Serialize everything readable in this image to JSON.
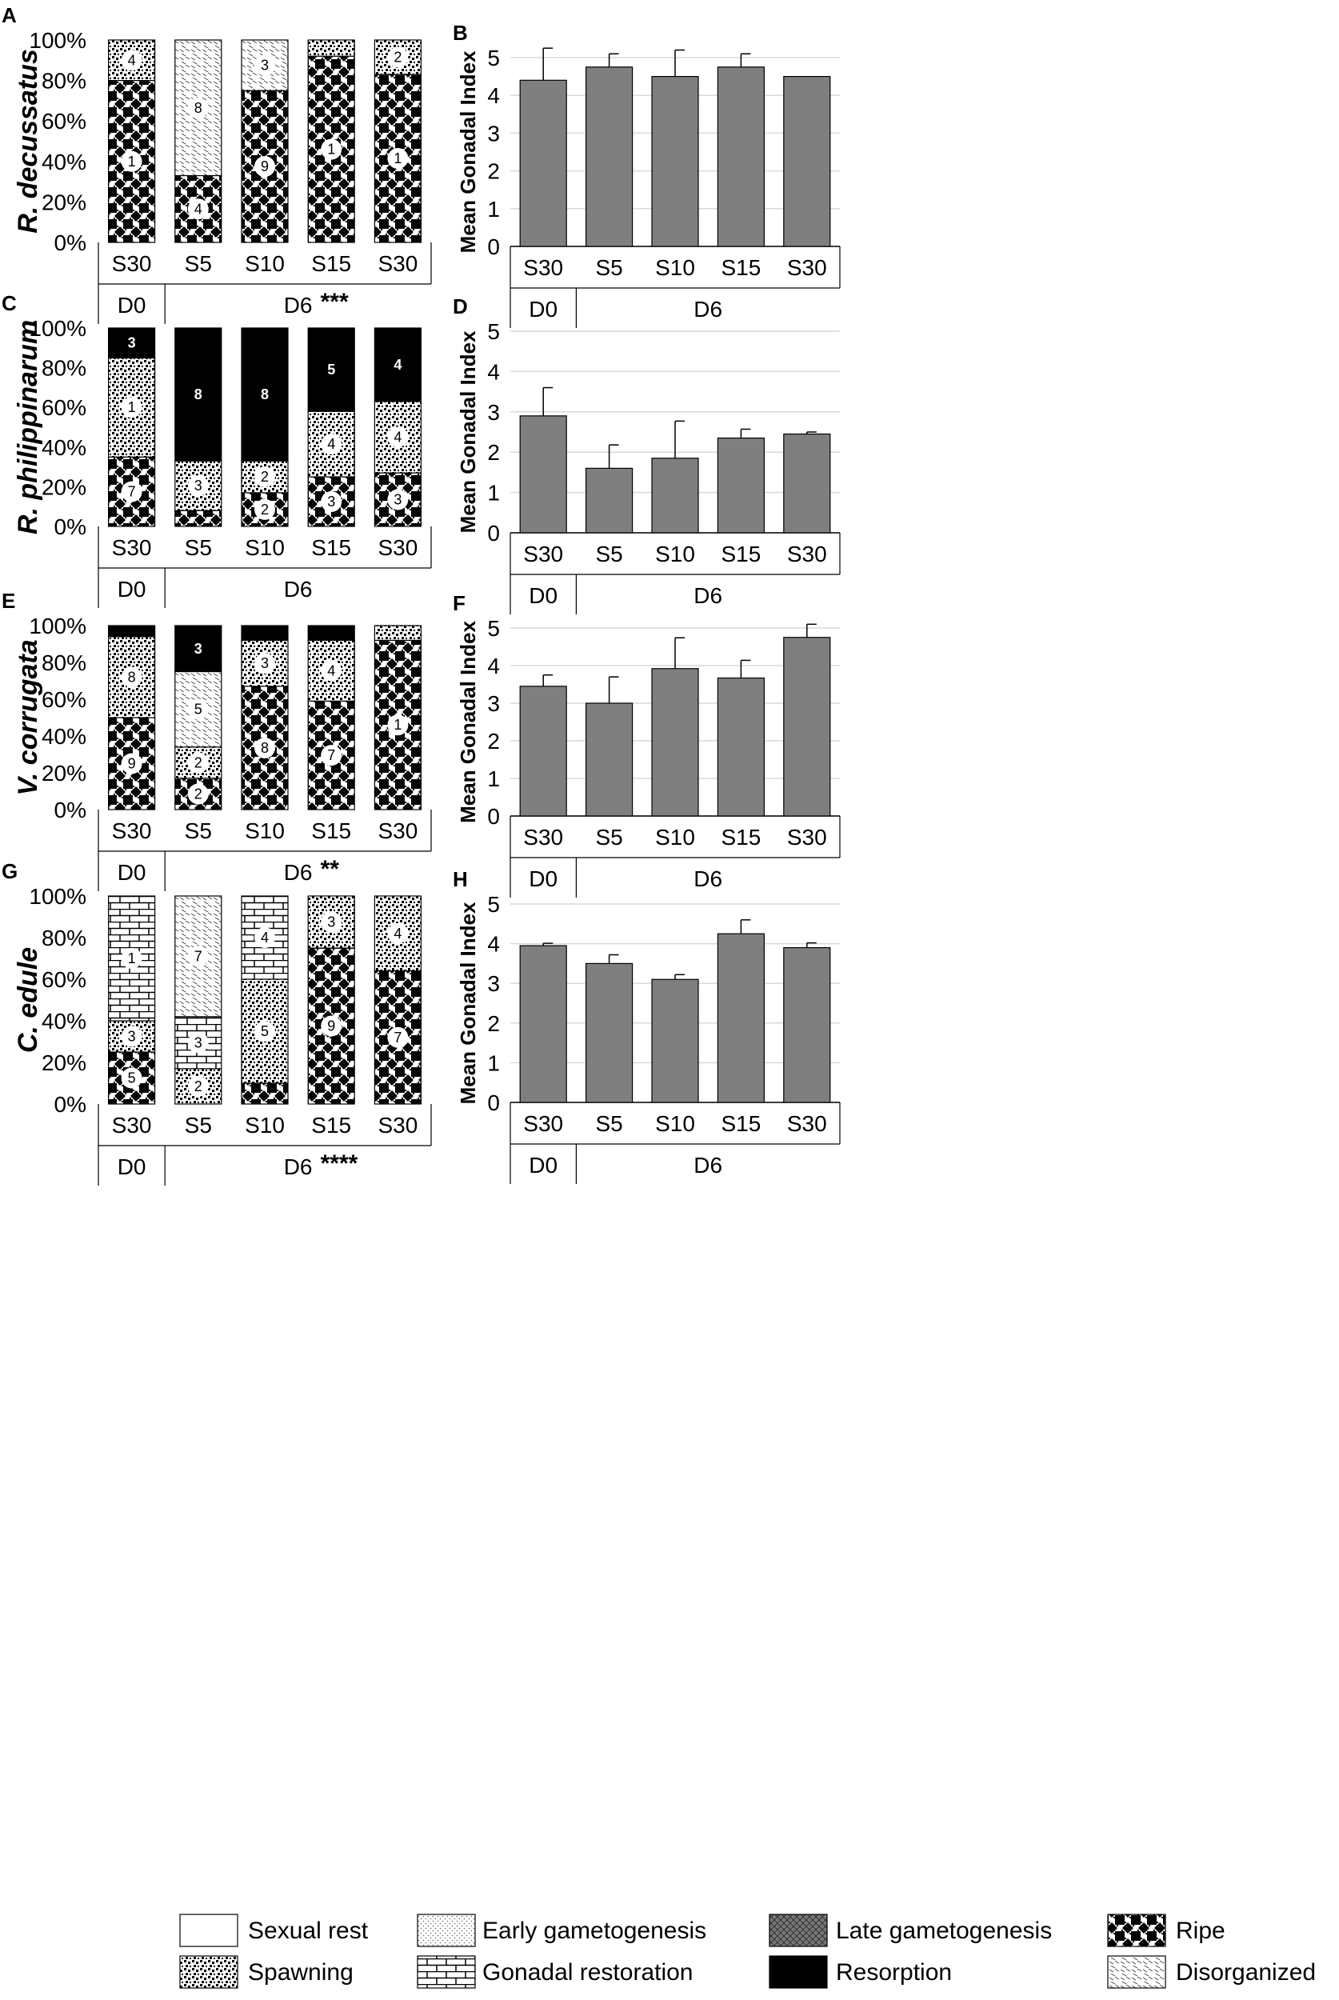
{
  "figure": {
    "x_groups": {
      "top": "S30,S5,S10,S15,S30",
      "d0_label": "D0",
      "d6_label": "D6"
    }
  },
  "legend": [
    {
      "key": "rest",
      "label": "Sexual rest"
    },
    {
      "key": "early",
      "label": "Early gametogenesis"
    },
    {
      "key": "late",
      "label": "Late gametogenesis"
    },
    {
      "key": "ripe",
      "label": "Ripe"
    },
    {
      "key": "spawn",
      "label": "Spawning"
    },
    {
      "key": "resto",
      "label": "Gonadal restoration"
    },
    {
      "key": "resorp",
      "label": "Resorption"
    },
    {
      "key": "disorg",
      "label": "Disorganized"
    }
  ],
  "chart_data": [
    {
      "panel": "A",
      "type": "bar",
      "stacked": true,
      "species": "R. decussatus",
      "categories": [
        "S30",
        "S5",
        "S10",
        "S15",
        "S30"
      ],
      "groups": [
        "D0",
        "D6",
        "D6",
        "D6",
        "D6"
      ],
      "significance": "***",
      "y_ticks": [
        "0%",
        "20%",
        "40%",
        "60%",
        "80%",
        "100%"
      ],
      "stacks": [
        [
          {
            "stage": "ripe",
            "pct": 80,
            "n": "1"
          },
          {
            "stage": "spawn",
            "pct": 20,
            "n": "4"
          }
        ],
        [
          {
            "stage": "ripe",
            "pct": 33,
            "n": "4"
          },
          {
            "stage": "disorg",
            "pct": 67,
            "n": "8"
          }
        ],
        [
          {
            "stage": "ripe",
            "pct": 75,
            "n": "9"
          },
          {
            "stage": "disorg",
            "pct": 25,
            "n": "3"
          }
        ],
        [
          {
            "stage": "ripe",
            "pct": 92,
            "n": "1"
          },
          {
            "stage": "spawn",
            "pct": 8,
            "n": ""
          }
        ],
        [
          {
            "stage": "ripe",
            "pct": 83,
            "n": "1"
          },
          {
            "stage": "spawn",
            "pct": 17,
            "n": "2"
          }
        ]
      ]
    },
    {
      "panel": "B",
      "type": "bar",
      "ylabel": "Mean Gonadal  Index",
      "ylim": [
        0,
        5
      ],
      "categories": [
        "S30",
        "S5",
        "S10",
        "S15",
        "S30"
      ],
      "groups": [
        "D0",
        "D6",
        "D6",
        "D6",
        "D6"
      ],
      "values": [
        4.4,
        4.75,
        4.5,
        4.75,
        4.5
      ],
      "errors": [
        0.85,
        0.35,
        0.7,
        0.35,
        0
      ]
    },
    {
      "panel": "C",
      "type": "bar",
      "stacked": true,
      "species": "R. philippinarum",
      "categories": [
        "S30",
        "S5",
        "S10",
        "S15",
        "S30"
      ],
      "groups": [
        "D0",
        "D6",
        "D6",
        "D6",
        "D6"
      ],
      "significance": "",
      "y_ticks": [
        "0%",
        "20%",
        "40%",
        "60%",
        "80%",
        "100%"
      ],
      "stacks": [
        [
          {
            "stage": "ripe",
            "pct": 35,
            "n": "7"
          },
          {
            "stage": "spawn",
            "pct": 50,
            "n": "1"
          },
          {
            "stage": "resorp",
            "pct": 15,
            "n": "3"
          }
        ],
        [
          {
            "stage": "ripe",
            "pct": 8,
            "n": ""
          },
          {
            "stage": "spawn",
            "pct": 25,
            "n": "3"
          },
          {
            "stage": "resorp",
            "pct": 67,
            "n": "8"
          }
        ],
        [
          {
            "stage": "ripe",
            "pct": 17,
            "n": "2"
          },
          {
            "stage": "spawn",
            "pct": 16,
            "n": "2"
          },
          {
            "stage": "resorp",
            "pct": 67,
            "n": "8"
          }
        ],
        [
          {
            "stage": "ripe",
            "pct": 25,
            "n": "3"
          },
          {
            "stage": "spawn",
            "pct": 33,
            "n": "4"
          },
          {
            "stage": "resorp",
            "pct": 42,
            "n": "5"
          }
        ],
        [
          {
            "stage": "ripe",
            "pct": 27,
            "n": "3"
          },
          {
            "stage": "spawn",
            "pct": 36,
            "n": "4"
          },
          {
            "stage": "resorp",
            "pct": 37,
            "n": "4"
          }
        ]
      ]
    },
    {
      "panel": "D",
      "type": "bar",
      "ylabel": "Mean Gonadal  Index",
      "ylim": [
        0,
        5
      ],
      "categories": [
        "S30",
        "S5",
        "S10",
        "S15",
        "S30"
      ],
      "groups": [
        "D0",
        "D6",
        "D6",
        "D6",
        "D6"
      ],
      "values": [
        2.9,
        1.6,
        1.85,
        2.35,
        2.45
      ],
      "errors": [
        0.7,
        0.58,
        0.92,
        0.22,
        0.05
      ]
    },
    {
      "panel": "E",
      "type": "bar",
      "stacked": true,
      "species": "V. corrugata",
      "categories": [
        "S30",
        "S5",
        "S10",
        "S15",
        "S30"
      ],
      "groups": [
        "D0",
        "D6",
        "D6",
        "D6",
        "D6"
      ],
      "significance": "**",
      "y_ticks": [
        "0%",
        "20%",
        "40%",
        "60%",
        "80%",
        "100%"
      ],
      "stacks": [
        [
          {
            "stage": "ripe",
            "pct": 50,
            "n": "9"
          },
          {
            "stage": "spawn",
            "pct": 44,
            "n": "8"
          },
          {
            "stage": "resorp",
            "pct": 6,
            "n": ""
          }
        ],
        [
          {
            "stage": "ripe",
            "pct": 17,
            "n": "2"
          },
          {
            "stage": "spawn",
            "pct": 17,
            "n": "2"
          },
          {
            "stage": "disorg",
            "pct": 41,
            "n": "5"
          },
          {
            "stage": "resorp",
            "pct": 25,
            "n": "3"
          }
        ],
        [
          {
            "stage": "ripe",
            "pct": 67,
            "n": "8"
          },
          {
            "stage": "spawn",
            "pct": 25,
            "n": "3"
          },
          {
            "stage": "resorp",
            "pct": 8,
            "n": ""
          }
        ],
        [
          {
            "stage": "ripe",
            "pct": 59,
            "n": "7"
          },
          {
            "stage": "spawn",
            "pct": 33,
            "n": "4"
          },
          {
            "stage": "resorp",
            "pct": 8,
            "n": ""
          }
        ],
        [
          {
            "stage": "ripe",
            "pct": 92,
            "n": "1"
          },
          {
            "stage": "spawn",
            "pct": 8,
            "n": ""
          }
        ]
      ]
    },
    {
      "panel": "F",
      "type": "bar",
      "ylabel": "Mean Gonadal  Index",
      "ylim": [
        0,
        5
      ],
      "categories": [
        "S30",
        "S5",
        "S10",
        "S15",
        "S30"
      ],
      "groups": [
        "D0",
        "D6",
        "D6",
        "D6",
        "D6"
      ],
      "values": [
        3.45,
        3.0,
        3.92,
        3.67,
        4.75
      ],
      "errors": [
        0.3,
        0.7,
        0.82,
        0.47,
        0.35
      ]
    },
    {
      "panel": "G",
      "type": "bar",
      "stacked": true,
      "species": "C. edule",
      "categories": [
        "S30",
        "S5",
        "S10",
        "S15",
        "S30"
      ],
      "groups": [
        "D0",
        "D6",
        "D6",
        "D6",
        "D6"
      ],
      "significance": "****",
      "y_ticks": [
        "0%",
        "20%",
        "40%",
        "60%",
        "80%",
        "100%"
      ],
      "stacks": [
        [
          {
            "stage": "ripe",
            "pct": 25,
            "n": "5"
          },
          {
            "stage": "spawn",
            "pct": 15,
            "n": "3"
          },
          {
            "stage": "resto",
            "pct": 60,
            "n": "1"
          }
        ],
        [
          {
            "stage": "spawn",
            "pct": 17,
            "n": "2"
          },
          {
            "stage": "resto",
            "pct": 25,
            "n": "3"
          },
          {
            "stage": "disorg",
            "pct": 58,
            "n": "7"
          }
        ],
        [
          {
            "stage": "ripe",
            "pct": 10,
            "n": ""
          },
          {
            "stage": "spawn",
            "pct": 50,
            "n": "5"
          },
          {
            "stage": "resto",
            "pct": 40,
            "n": "4"
          }
        ],
        [
          {
            "stage": "ripe",
            "pct": 75,
            "n": "9"
          },
          {
            "stage": "spawn",
            "pct": 25,
            "n": "3"
          }
        ],
        [
          {
            "stage": "ripe",
            "pct": 64,
            "n": "7"
          },
          {
            "stage": "spawn",
            "pct": 36,
            "n": "4"
          }
        ]
      ]
    },
    {
      "panel": "H",
      "type": "bar",
      "ylabel": "Mean Gonadal  Index",
      "ylim": [
        0,
        5
      ],
      "categories": [
        "S30",
        "S5",
        "S10",
        "S15",
        "S30"
      ],
      "groups": [
        "D0",
        "D6",
        "D6",
        "D6",
        "D6"
      ],
      "values": [
        3.95,
        3.5,
        3.1,
        4.25,
        3.9
      ],
      "errors": [
        0.06,
        0.22,
        0.12,
        0.35,
        0.12
      ]
    }
  ]
}
